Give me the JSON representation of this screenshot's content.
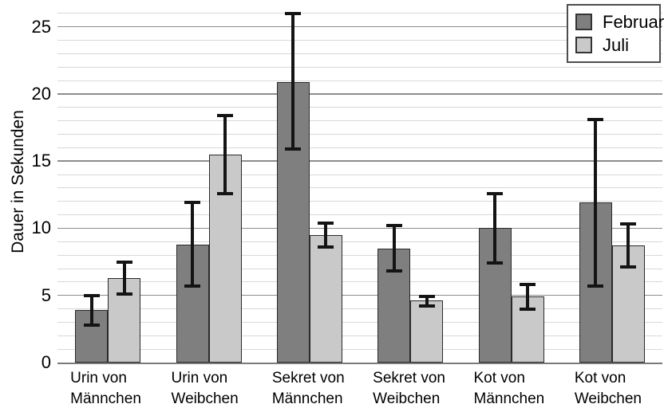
{
  "chart_data": {
    "type": "bar",
    "title": "",
    "xlabel": "",
    "ylabel": "Dauer in Sekunden",
    "ylim": [
      0,
      27
    ],
    "yticks": [
      0,
      5,
      10,
      15,
      20,
      25
    ],
    "minor_grid_step": 1,
    "grid": "horizontal; minor every 1, major every 5",
    "legend_position": "top-right",
    "categories": [
      "Urin von Männchen",
      "Urin von Weibchen",
      "Sekret von Männchen",
      "Sekret von Weibchen",
      "Kot von Männchen",
      "Kot von Weibchen"
    ],
    "category_label_lines": [
      [
        "Urin von",
        "Männchen"
      ],
      [
        "Urin von",
        "Weibchen"
      ],
      [
        "Sekret von",
        "Männchen"
      ],
      [
        "Sekret von",
        "Weibchen"
      ],
      [
        "Kot von",
        "Männchen"
      ],
      [
        "Kot von",
        "Weibchen"
      ]
    ],
    "series": [
      {
        "name": "Februar",
        "color": "#7f7f7f",
        "values": [
          3.9,
          8.8,
          20.9,
          8.5,
          10.0,
          11.9
        ],
        "error_low": [
          2.8,
          5.7,
          15.9,
          6.8,
          7.4,
          5.7
        ],
        "error_high": [
          5.0,
          11.9,
          26.0,
          10.2,
          12.6,
          18.1
        ]
      },
      {
        "name": "Juli",
        "color": "#c9c9c9",
        "values": [
          6.3,
          15.5,
          9.5,
          4.6,
          4.9,
          8.7
        ],
        "error_low": [
          5.1,
          12.6,
          8.6,
          4.2,
          4.0,
          7.1
        ],
        "error_high": [
          7.5,
          18.4,
          10.4,
          4.9,
          5.8,
          10.3
        ]
      }
    ],
    "colors": {
      "background": "#ffffff",
      "bar_border": "#2a2a2a",
      "error_bar": "#141414",
      "grid_minor": "#d8d8d8",
      "grid_major": "#8c8c8c",
      "axis_line": "#7a7a7a",
      "legend_border": "#4d4d4d",
      "text": "#000000"
    }
  }
}
